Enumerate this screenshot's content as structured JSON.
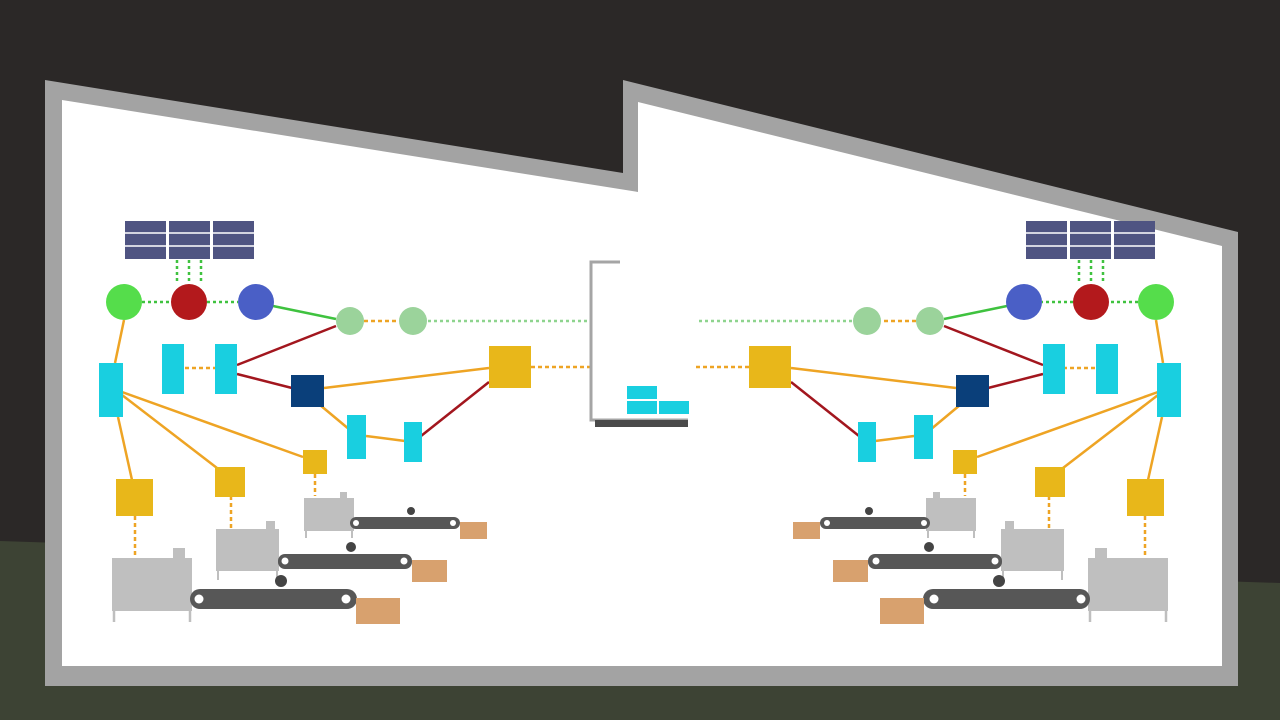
{
  "scene": "factory-network-illustration",
  "colors": {
    "sky": "#2b2827",
    "ground": "#3d4334",
    "wall": "#a3a3a3",
    "interior": "#ffffff",
    "solar_panel": "#4f5482",
    "node_green": "#55dd4b",
    "node_red": "#b3191c",
    "node_blue": "#4a5fc6",
    "node_pale_green": "#9bd39b",
    "device_cyan": "#19cfe0",
    "device_navy": "#0a3f7a",
    "controller_gold": "#e8b71a",
    "line_green": "#3fc23f",
    "line_orange": "#eea424",
    "line_red": "#a2161e",
    "line_dotted_green": "#8ed48e",
    "machine_grey": "#bfbfbf",
    "conveyor_dark": "#575757",
    "box_tan": "#d8a16e",
    "server_frame": "#a5a5a5",
    "server_base": "#4a4a4a"
  },
  "icons": [
    "solar-panel-icon",
    "network-node-icon",
    "sensor-device-icon",
    "plc-controller-icon",
    "machine-icon",
    "conveyor-belt-icon",
    "cardboard-box-icon",
    "server-rack-icon"
  ]
}
